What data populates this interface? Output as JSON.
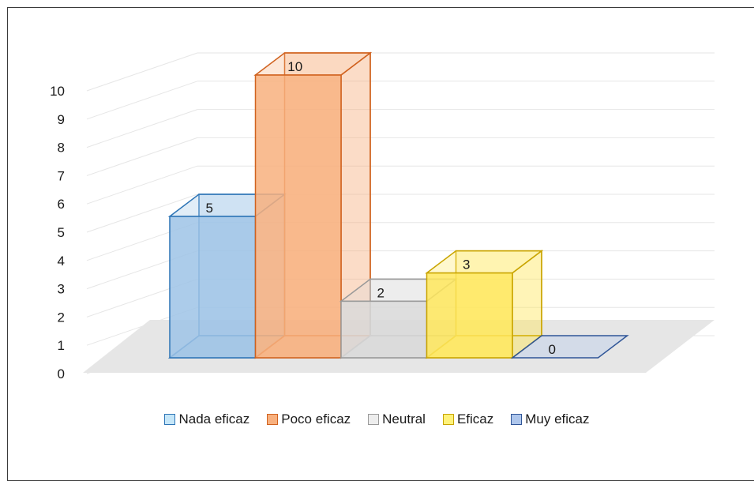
{
  "chart_data": {
    "type": "bar",
    "style": "3d-column",
    "categories": [
      "Nada eficaz",
      "Poco eficaz",
      "Neutral",
      "Eficaz",
      "Muy eficaz"
    ],
    "values": [
      5,
      10,
      2,
      3,
      0
    ],
    "title": "",
    "xlabel": "",
    "ylabel": "",
    "ylim": [
      0,
      10
    ],
    "yticks": [
      0,
      1,
      2,
      3,
      4,
      5,
      6,
      7,
      8,
      9,
      10
    ],
    "grid": true,
    "legend_position": "bottom",
    "colors": [
      {
        "fill": "#9DC3E6",
        "edge": "#2E75B6"
      },
      {
        "fill": "#F8B07E",
        "edge": "#D0621F"
      },
      {
        "fill": "#D9D9D9",
        "edge": "#999999"
      },
      {
        "fill": "#FFE85C",
        "edge": "#C9A400"
      },
      {
        "fill": "#AEC6EC",
        "edge": "#2F5597"
      }
    ],
    "legend_colors": [
      "#C5E6F8",
      "#F8B07E",
      "#EDEDED",
      "#FFF27A",
      "#AEC6EC"
    ]
  }
}
